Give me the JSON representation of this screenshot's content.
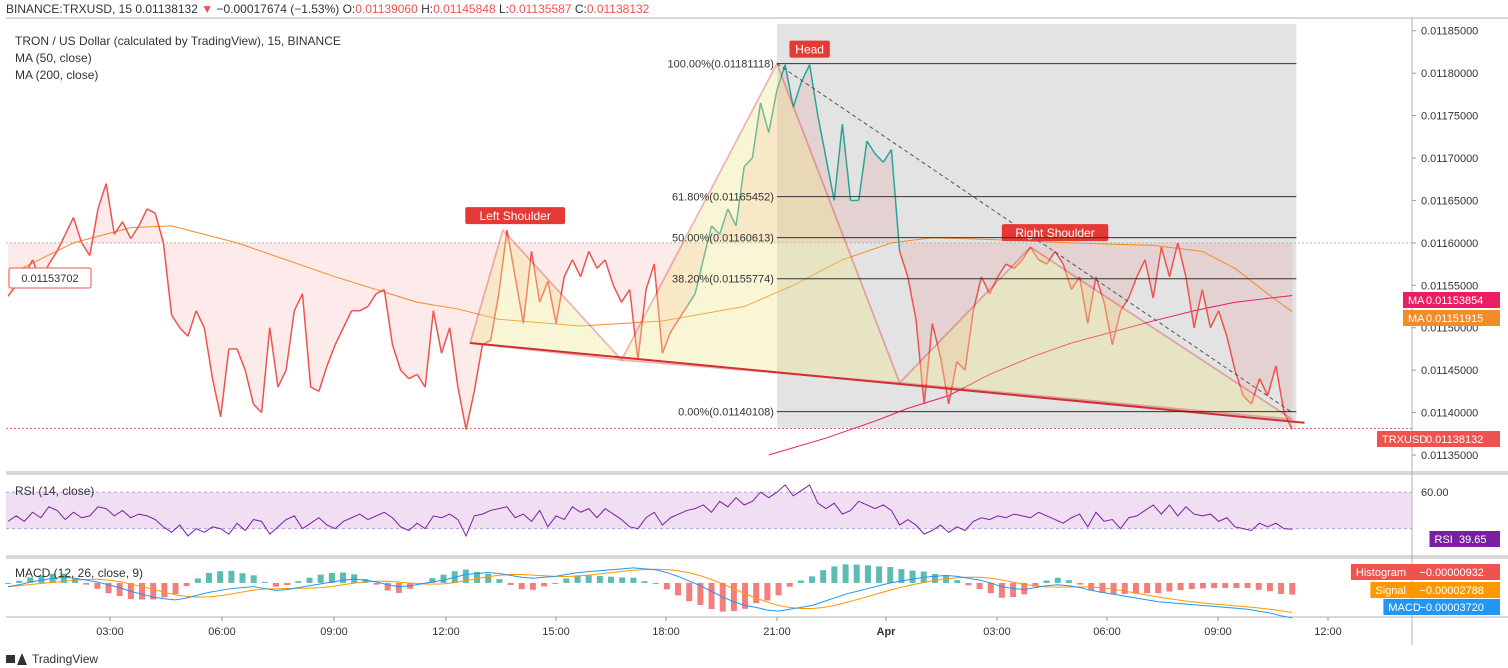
{
  "header": {
    "symbol": "BINANCE:TRXUSD, 15",
    "last": "0.01138132",
    "change_arrow": "▼",
    "change": "−0.00017674 (−1.53%)",
    "open_label": "O:",
    "open": "0.01139060",
    "high_label": "H:",
    "high": "0.01145848",
    "low_label": "L:",
    "low": "0.01135587",
    "close_label": "C:",
    "close": "0.01138132"
  },
  "legend": {
    "title": "TRON / US Dollar (calculated by TradingView), 15, BINANCE",
    "ma50": "MA (50, close)",
    "ma200": "MA (200, close)"
  },
  "rsi_label": "RSI (14, close)",
  "macd_label": "MACD (12, 26, close, 9)",
  "footer": {
    "brand": "TradingView"
  },
  "colors": {
    "price": "#ef5350",
    "price_up": "#26a69a",
    "ma50": "#f28c28",
    "ma200": "#e91e63",
    "pattern": "#d32f2f",
    "rsi": "#7b1fa2",
    "macd": "#2196f3",
    "signal": "#ff9800",
    "hist_pos": "#26a69a",
    "hist_neg": "#ef5350",
    "label_bg": "#e53935"
  },
  "chart_data": {
    "type": "line",
    "symbol": "TRXUSD",
    "ylim": [
      0.01133,
      0.011865
    ],
    "y_ticks": [
      "0.01135000",
      "0.01140000",
      "0.01145000",
      "0.01150000",
      "0.01155000",
      "0.01160000",
      "0.01165000",
      "0.01170000",
      "0.01175000",
      "0.01180000",
      "0.01185000"
    ],
    "x_ticks": [
      "03:00",
      "06:00",
      "09:00",
      "12:00",
      "15:00",
      "18:00",
      "21:00",
      "Apr",
      "03:00",
      "06:00",
      "09:00",
      "12:00"
    ],
    "price": [
      [
        0,
        0.011537
      ],
      [
        1,
        0.01155
      ],
      [
        2,
        0.01156
      ],
      [
        3,
        0.01158
      ],
      [
        4,
        0.011555
      ],
      [
        5,
        0.011575
      ],
      [
        6,
        0.01159
      ],
      [
        7,
        0.01161
      ],
      [
        8,
        0.01163
      ],
      [
        9,
        0.0116
      ],
      [
        10,
        0.011585
      ],
      [
        11,
        0.01164
      ],
      [
        12,
        0.01167
      ],
      [
        13,
        0.01161
      ],
      [
        14,
        0.011625
      ],
      [
        15,
        0.011605
      ],
      [
        16,
        0.01162
      ],
      [
        17,
        0.01164
      ],
      [
        18,
        0.011635
      ],
      [
        19,
        0.0116
      ],
      [
        20,
        0.011515
      ],
      [
        21,
        0.0115
      ],
      [
        22,
        0.01149
      ],
      [
        23,
        0.01152
      ],
      [
        24,
        0.0115
      ],
      [
        25,
        0.01144
      ],
      [
        26,
        0.011395
      ],
      [
        27,
        0.011475
      ],
      [
        28,
        0.011475
      ],
      [
        29,
        0.01145
      ],
      [
        30,
        0.01141
      ],
      [
        31,
        0.0114
      ],
      [
        32,
        0.0115
      ],
      [
        33,
        0.01143
      ],
      [
        34,
        0.01145
      ],
      [
        35,
        0.01152
      ],
      [
        36,
        0.01154
      ],
      [
        37,
        0.01143
      ],
      [
        38,
        0.011425
      ],
      [
        39,
        0.011455
      ],
      [
        40,
        0.01148
      ],
      [
        41,
        0.0115
      ],
      [
        42,
        0.01152
      ],
      [
        43,
        0.01152
      ],
      [
        44,
        0.011525
      ],
      [
        45,
        0.01154
      ],
      [
        46,
        0.011545
      ],
      [
        47,
        0.01148
      ],
      [
        48,
        0.01145
      ],
      [
        49,
        0.01144
      ],
      [
        50,
        0.011445
      ],
      [
        51,
        0.01143
      ],
      [
        52,
        0.01152
      ],
      [
        53,
        0.01147
      ],
      [
        54,
        0.0115
      ],
      [
        55,
        0.01143
      ],
      [
        56,
        0.01138
      ],
      [
        57,
        0.011425
      ],
      [
        58,
        0.01148
      ],
      [
        59,
        0.011485
      ],
      [
        60,
        0.01154
      ],
      [
        61,
        0.011615
      ],
      [
        62,
        0.01156
      ],
      [
        63,
        0.011505
      ],
      [
        64,
        0.01159
      ],
      [
        65,
        0.01153
      ],
      [
        66,
        0.011555
      ],
      [
        67,
        0.011505
      ],
      [
        68,
        0.01156
      ],
      [
        69,
        0.01158
      ],
      [
        70,
        0.01156
      ],
      [
        71,
        0.01159
      ],
      [
        72,
        0.01157
      ],
      [
        73,
        0.01158
      ],
      [
        74,
        0.01155
      ],
      [
        75,
        0.01153
      ],
      [
        76,
        0.011545
      ],
      [
        77,
        0.011462
      ],
      [
        78,
        0.011545
      ],
      [
        79,
        0.011575
      ],
      [
        80,
        0.01147
      ],
      [
        81,
        0.011495
      ],
      [
        82,
        0.01151
      ],
      [
        83,
        0.011525
      ],
      [
        84,
        0.01154
      ],
      [
        85,
        0.01158
      ],
      [
        86,
        0.01162
      ],
      [
        87,
        0.01161
      ],
      [
        88,
        0.01164
      ],
      [
        89,
        0.01162
      ],
      [
        90,
        0.01169
      ],
      [
        91,
        0.0117
      ],
      [
        92,
        0.011765
      ],
      [
        93,
        0.01173
      ],
      [
        94,
        0.01178
      ],
      [
        95,
        0.01181
      ],
      [
        96,
        0.01176
      ],
      [
        97,
        0.01179
      ],
      [
        98,
        0.01181
      ],
      [
        99,
        0.01175
      ],
      [
        100,
        0.0117
      ],
      [
        101,
        0.01165
      ],
      [
        102,
        0.01174
      ],
      [
        103,
        0.01165
      ],
      [
        104,
        0.01165
      ],
      [
        105,
        0.01172
      ],
      [
        106,
        0.011705
      ],
      [
        107,
        0.011695
      ],
      [
        108,
        0.01171
      ],
      [
        109,
        0.01159
      ],
      [
        110,
        0.01156
      ],
      [
        111,
        0.01151
      ],
      [
        112,
        0.01141
      ],
      [
        113,
        0.011505
      ],
      [
        114,
        0.011465
      ],
      [
        115,
        0.01141
      ],
      [
        116,
        0.01146
      ],
      [
        117,
        0.01145
      ],
      [
        118,
        0.01152
      ],
      [
        119,
        0.01156
      ],
      [
        120,
        0.01154
      ],
      [
        121,
        0.01156
      ],
      [
        122,
        0.011575
      ],
      [
        123,
        0.01157
      ],
      [
        124,
        0.01158
      ],
      [
        125,
        0.011595
      ],
      [
        126,
        0.01158
      ],
      [
        127,
        0.011575
      ],
      [
        128,
        0.01159
      ],
      [
        129,
        0.011575
      ],
      [
        130,
        0.011545
      ],
      [
        131,
        0.01156
      ],
      [
        132,
        0.011505
      ],
      [
        133,
        0.01156
      ],
      [
        134,
        0.01153
      ],
      [
        135,
        0.01148
      ],
      [
        136,
        0.01152
      ],
      [
        137,
        0.011535
      ],
      [
        138,
        0.01156
      ],
      [
        139,
        0.01158
      ],
      [
        140,
        0.011535
      ],
      [
        141,
        0.011595
      ],
      [
        142,
        0.01156
      ],
      [
        143,
        0.0116
      ],
      [
        144,
        0.01156
      ],
      [
        145,
        0.0115
      ],
      [
        146,
        0.011545
      ],
      [
        147,
        0.0115
      ],
      [
        148,
        0.01152
      ],
      [
        149,
        0.01149
      ],
      [
        150,
        0.01145
      ],
      [
        151,
        0.01142
      ],
      [
        152,
        0.01141
      ],
      [
        153,
        0.01144
      ],
      [
        154,
        0.01142
      ],
      [
        155,
        0.011455
      ],
      [
        156,
        0.0114
      ],
      [
        157,
        0.01138
      ]
    ],
    "ma50": [
      [
        0,
        0.011562
      ],
      [
        8,
        0.0116
      ],
      [
        15,
        0.011618
      ],
      [
        20,
        0.01162
      ],
      [
        28,
        0.0116
      ],
      [
        40,
        0.01156
      ],
      [
        50,
        0.01153
      ],
      [
        55,
        0.011522
      ],
      [
        60,
        0.01151
      ],
      [
        70,
        0.011502
      ],
      [
        80,
        0.011508
      ],
      [
        90,
        0.011525
      ],
      [
        96,
        0.01155
      ],
      [
        102,
        0.01158
      ],
      [
        108,
        0.0116
      ],
      [
        113,
        0.011606
      ],
      [
        120,
        0.011604
      ],
      [
        130,
        0.0116
      ],
      [
        140,
        0.011597
      ],
      [
        146,
        0.01159
      ],
      [
        150,
        0.01157
      ],
      [
        154,
        0.01154
      ],
      [
        157,
        0.011519
      ]
    ],
    "ma200": [
      [
        93,
        0.01135
      ],
      [
        100,
        0.01137
      ],
      [
        106,
        0.01139
      ],
      [
        110,
        0.011405
      ],
      [
        115,
        0.01142
      ],
      [
        120,
        0.011445
      ],
      [
        125,
        0.011465
      ],
      [
        130,
        0.011482
      ],
      [
        135,
        0.011495
      ],
      [
        140,
        0.011508
      ],
      [
        145,
        0.01152
      ],
      [
        150,
        0.01153
      ],
      [
        157,
        0.011538
      ]
    ],
    "fibonacci": [
      {
        "label": "100.00%(0.01181118)",
        "value": 0.01181118
      },
      {
        "label": "61.80%(0.01165452)",
        "value": 0.01165452
      },
      {
        "label": "50.00%(0.01160613)",
        "value": 0.01160613
      },
      {
        "label": "38.20%(0.01155774)",
        "value": 0.01155774
      },
      {
        "label": "0.00%(0.01140108)",
        "value": 0.01140108
      }
    ],
    "annotations": [
      {
        "text": "Head",
        "x": 98,
        "y": 0.01181118
      },
      {
        "text": "Left Shoulder",
        "x": 62,
        "y": 0.011615
      },
      {
        "text": "Right Shoulder",
        "x": 128,
        "y": 0.011595
      }
    ],
    "dashed_level": {
      "value": 0.0116
    },
    "price_level_left": "0.01153702",
    "badges": [
      {
        "prefix": "MA",
        "value": "0.01153854",
        "kind": "ma200"
      },
      {
        "prefix": "MA",
        "value": "0.01151915",
        "kind": "ma50"
      },
      {
        "prefix": "TRXUSD",
        "value": "0.01138132",
        "kind": "price"
      }
    ],
    "rsi": {
      "level_label": "60.00",
      "current": "39.65",
      "badge_prefix": "RSI",
      "values": [
        44,
        47,
        44,
        49,
        46,
        52,
        50,
        45,
        49,
        46,
        47,
        52,
        51,
        47,
        50,
        46,
        48,
        47,
        45,
        41,
        38,
        42,
        36,
        40,
        38,
        41,
        40,
        37,
        43,
        39,
        45,
        44,
        37,
        41,
        45,
        47,
        40,
        43,
        46,
        42,
        40,
        44,
        46,
        48,
        45,
        47,
        49,
        46,
        41,
        39,
        43,
        40,
        47,
        46,
        48,
        45,
        36,
        47,
        48,
        50,
        51,
        52,
        46,
        48,
        44,
        50,
        41,
        47,
        45,
        52,
        49,
        51,
        46,
        51,
        48,
        45,
        41,
        40,
        46,
        49,
        42,
        46,
        48,
        50,
        51,
        53,
        49,
        55,
        52,
        57,
        53,
        55,
        60,
        57,
        60,
        64,
        58,
        61,
        64,
        54,
        51,
        54,
        48,
        50,
        55,
        53,
        51,
        53,
        50,
        42,
        45,
        42,
        37,
        39,
        42,
        38,
        41,
        39,
        44,
        46,
        45,
        47,
        46,
        48,
        47,
        46,
        49,
        47,
        45,
        43,
        46,
        48,
        41,
        49,
        44,
        45,
        40,
        46,
        47,
        50,
        53,
        48,
        53,
        47,
        52,
        48,
        47,
        48,
        44,
        46,
        41,
        40,
        39,
        43,
        41,
        43,
        40,
        39.65
      ]
    },
    "macd": {
      "histogram_label": "Histogram",
      "histogram": "−0.00000932",
      "signal_label": "Signal",
      "signal": "−0.00002788",
      "macd_label": "MACD",
      "macd": "−0.00003720",
      "macd_values": [
        -0.4,
        -0.2,
        0.1,
        0.3,
        0.5,
        0.6,
        0.5,
        0.3,
        0.1,
        -0.2,
        -0.5,
        -0.9,
        -1.2,
        -1.5,
        -1.7,
        -1.8,
        -1.6,
        -1.3,
        -1.0,
        -0.8,
        -0.6,
        -0.5,
        -0.4,
        -0.6,
        -0.8,
        -0.7,
        -0.5,
        -0.3,
        -0.1,
        0.1,
        0.3,
        0.4,
        0.3,
        0.1,
        -0.2,
        -0.4,
        -0.3,
        -0.1,
        0.1,
        0.3,
        0.6,
        0.9,
        1.0,
        1.1,
        1.0,
        0.8,
        0.6,
        0.5,
        0.6,
        0.7,
        0.9,
        1.1,
        1.2,
        1.3,
        1.4,
        1.5,
        1.6,
        1.5,
        1.4,
        1.1,
        0.7,
        0.2,
        -0.3,
        -0.9,
        -1.5,
        -2.0,
        -2.4,
        -2.6,
        -2.9,
        -3.0,
        -2.8,
        -2.6,
        -2.4,
        -2.0,
        -1.6,
        -1.2,
        -0.9,
        -0.6,
        -0.3,
        0.0,
        0.2,
        0.4,
        0.6,
        0.7,
        0.8,
        0.7,
        0.5,
        0.3,
        0.0,
        -0.4,
        -0.6,
        -0.7,
        -0.5,
        -0.3,
        -0.2,
        -0.3,
        -0.5,
        -0.8,
        -1.0,
        -1.2,
        -1.4,
        -1.6,
        -1.8,
        -2.0,
        -2.1,
        -2.2,
        -2.3,
        -2.4,
        -2.5,
        -2.6,
        -2.7,
        -2.8,
        -3.0,
        -3.2,
        -3.5,
        -3.72
      ]
    }
  }
}
